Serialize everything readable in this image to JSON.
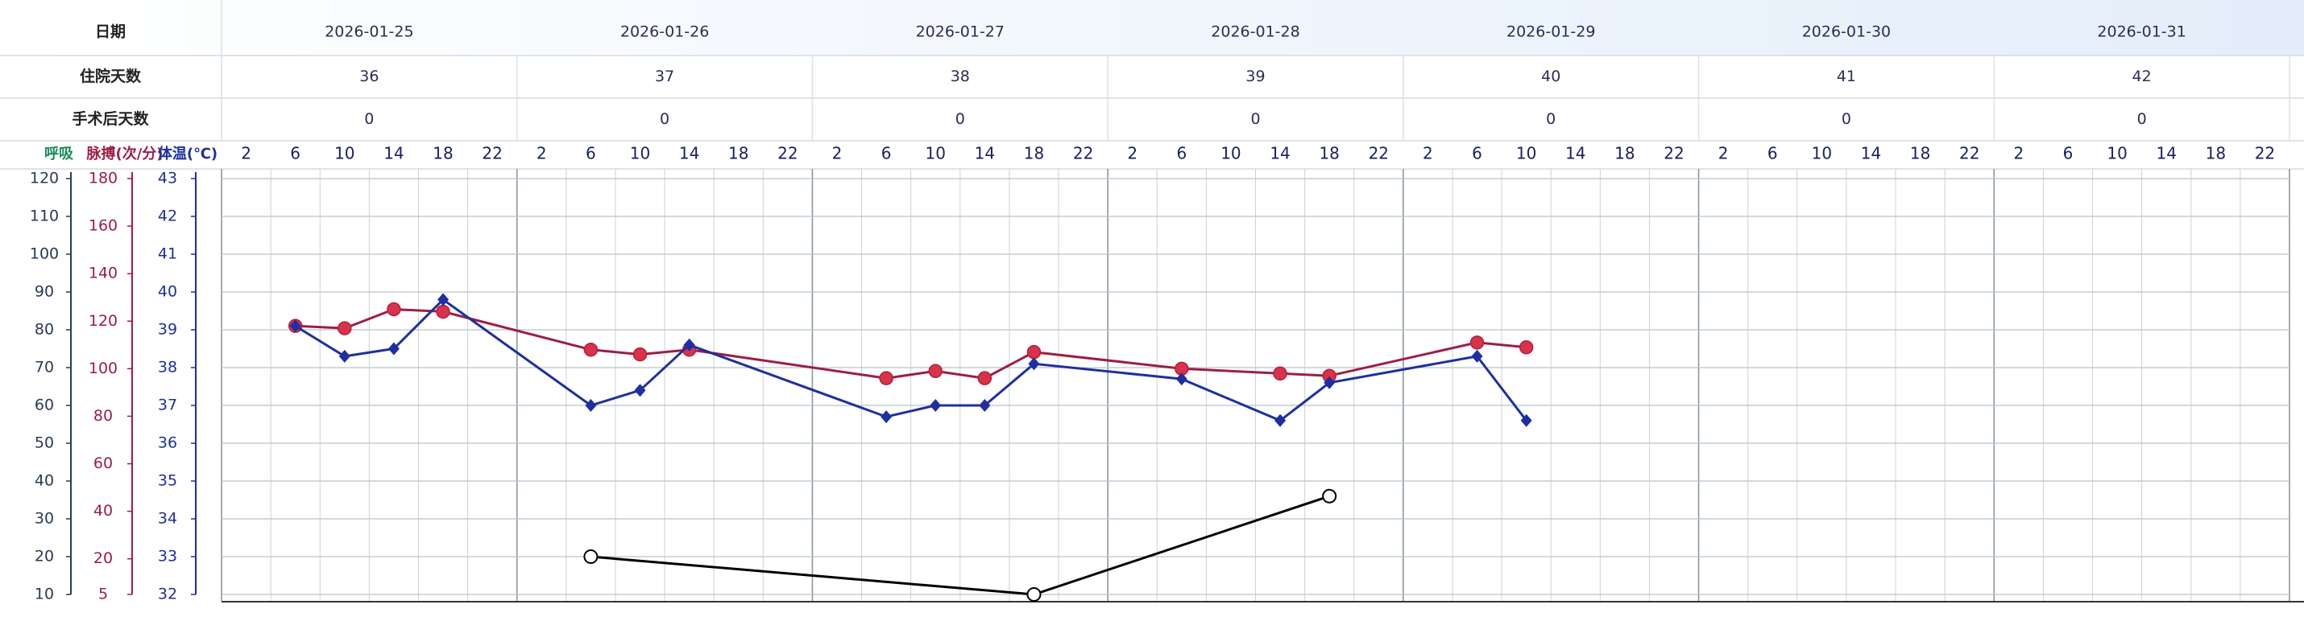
{
  "chart_data": {
    "type": "line",
    "date_label": "日期",
    "dates": [
      "2026-01-25",
      "2026-01-26",
      "2026-01-27",
      "2026-01-28",
      "2026-01-29",
      "2026-01-30",
      "2026-01-31"
    ],
    "day_rows": [
      {
        "label": "住院天数",
        "values": [
          36,
          37,
          38,
          39,
          40,
          41,
          42
        ]
      },
      {
        "label": "手术后天数",
        "values": [
          0,
          0,
          0,
          0,
          0,
          0,
          0
        ]
      }
    ],
    "hours": [
      2,
      6,
      10,
      14,
      18,
      22
    ],
    "grid": true,
    "series": [
      {
        "name": "呼吸",
        "color": "#000000",
        "marker": "open-circle",
        "ylim": [
          10,
          120
        ],
        "yticks": [
          120,
          110,
          100,
          90,
          80,
          70,
          60,
          50,
          40,
          30,
          20,
          10
        ],
        "points": [
          {
            "date": "2026-01-26",
            "hour": 6,
            "value": 20
          },
          {
            "date": "2026-01-27",
            "hour": 18,
            "value": 10
          },
          {
            "date": "2026-01-28",
            "hour": 18,
            "value": 36
          }
        ]
      },
      {
        "name": "脉搏(次/分)",
        "color": "#9b1f45",
        "marker": "circle",
        "ylim": [
          5,
          180
        ],
        "yticks": [
          180,
          160,
          140,
          120,
          100,
          80,
          60,
          40,
          20,
          5
        ],
        "points": [
          {
            "date": "2026-01-25",
            "hour": 6,
            "value": 118
          },
          {
            "date": "2026-01-25",
            "hour": 10,
            "value": 117
          },
          {
            "date": "2026-01-25",
            "hour": 14,
            "value": 125
          },
          {
            "date": "2026-01-25",
            "hour": 18,
            "value": 124
          },
          {
            "date": "2026-01-26",
            "hour": 6,
            "value": 108
          },
          {
            "date": "2026-01-26",
            "hour": 10,
            "value": 106
          },
          {
            "date": "2026-01-26",
            "hour": 14,
            "value": 108
          },
          {
            "date": "2026-01-27",
            "hour": 6,
            "value": 96
          },
          {
            "date": "2026-01-27",
            "hour": 10,
            "value": 99
          },
          {
            "date": "2026-01-27",
            "hour": 14,
            "value": 96
          },
          {
            "date": "2026-01-27",
            "hour": 18,
            "value": 107
          },
          {
            "date": "2026-01-28",
            "hour": 6,
            "value": 100
          },
          {
            "date": "2026-01-28",
            "hour": 14,
            "value": 98
          },
          {
            "date": "2026-01-28",
            "hour": 18,
            "value": 97
          },
          {
            "date": "2026-01-29",
            "hour": 6,
            "value": 111
          },
          {
            "date": "2026-01-29",
            "hour": 10,
            "value": 109
          }
        ]
      },
      {
        "name": "体温(℃)",
        "color": "#1f2fa0",
        "marker": "diamond",
        "ylim": [
          32,
          43
        ],
        "yticks": [
          43,
          42,
          41,
          40,
          39,
          38,
          37,
          36,
          35,
          34,
          33,
          32
        ],
        "points": [
          {
            "date": "2026-01-25",
            "hour": 6,
            "value": 39.1
          },
          {
            "date": "2026-01-25",
            "hour": 10,
            "value": 38.3
          },
          {
            "date": "2026-01-25",
            "hour": 14,
            "value": 38.5
          },
          {
            "date": "2026-01-25",
            "hour": 18,
            "value": 39.8
          },
          {
            "date": "2026-01-26",
            "hour": 6,
            "value": 37.0
          },
          {
            "date": "2026-01-26",
            "hour": 10,
            "value": 37.4
          },
          {
            "date": "2026-01-26",
            "hour": 14,
            "value": 38.6
          },
          {
            "date": "2026-01-27",
            "hour": 6,
            "value": 36.7
          },
          {
            "date": "2026-01-27",
            "hour": 10,
            "value": 37.0
          },
          {
            "date": "2026-01-27",
            "hour": 14,
            "value": 37.0
          },
          {
            "date": "2026-01-27",
            "hour": 18,
            "value": 38.1
          },
          {
            "date": "2026-01-28",
            "hour": 6,
            "value": 37.7
          },
          {
            "date": "2026-01-28",
            "hour": 14,
            "value": 36.6
          },
          {
            "date": "2026-01-28",
            "hour": 18,
            "value": 37.6
          },
          {
            "date": "2026-01-29",
            "hour": 6,
            "value": 38.3
          },
          {
            "date": "2026-01-29",
            "hour": 10,
            "value": 36.6
          }
        ]
      }
    ]
  }
}
